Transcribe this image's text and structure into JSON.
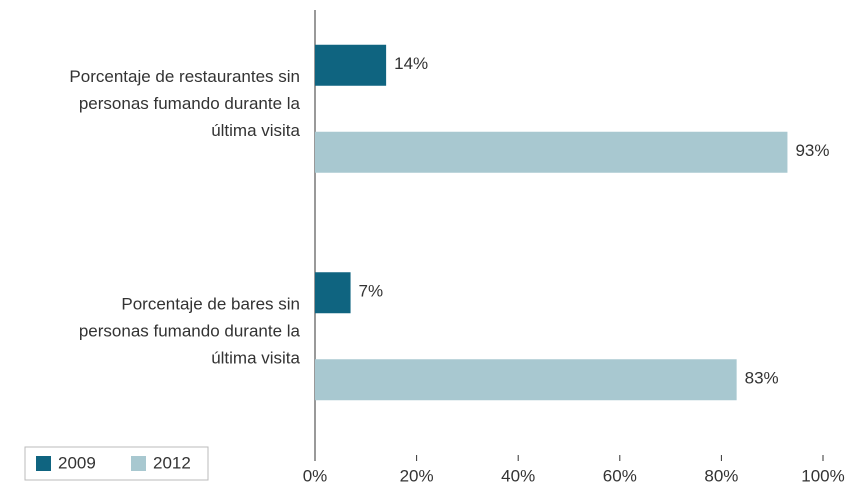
{
  "chart_data": {
    "type": "barh",
    "categories": [
      "Porcentaje de restaurantes sin\npersonas fumando durante la\núltima visita",
      "Porcentaje de bares sin\npersonas fumando durante la\núltima visita"
    ],
    "series": [
      {
        "name": "2009",
        "color": "#0f6480",
        "values": [
          14,
          7
        ],
        "value_labels": [
          "14%",
          "7%"
        ]
      },
      {
        "name": "2012",
        "color": "#a8c8d0",
        "values": [
          93,
          83
        ],
        "value_labels": [
          "93%",
          "83%"
        ]
      }
    ],
    "xlim": [
      0,
      100
    ],
    "xticks": [
      {
        "value": 0,
        "label": "0%"
      },
      {
        "value": 20,
        "label": "20%"
      },
      {
        "value": 40,
        "label": "40%"
      },
      {
        "value": 60,
        "label": "60%"
      },
      {
        "value": 80,
        "label": "80%"
      },
      {
        "value": 100,
        "label": "100%"
      }
    ],
    "legend": "bottom-left"
  }
}
